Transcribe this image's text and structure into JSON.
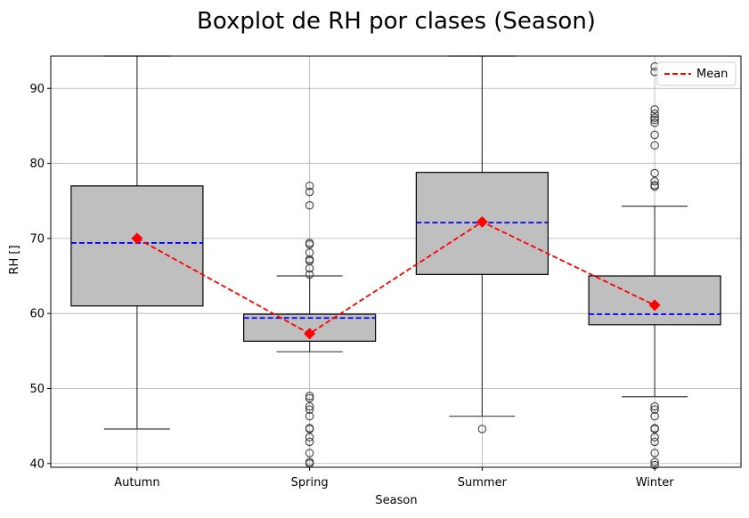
{
  "chart_data": {
    "type": "box",
    "title": "Boxplot de RH por clases (Season)",
    "xlabel": "Season",
    "ylabel": "RH []",
    "ylim": [
      39.5,
      94.3
    ],
    "yticks": [
      40,
      50,
      60,
      70,
      80,
      90
    ],
    "grid": true,
    "legend": {
      "position": "top-right",
      "entries": [
        {
          "label": "Mean",
          "color": "#ff0000",
          "style": "dashed"
        }
      ]
    },
    "colors": {
      "box_fill": "#bfbfbf",
      "box_edge": "#000000",
      "median": "#0000ff",
      "whisker": "#3f3f3f",
      "mean": "#ff0000",
      "grid": "#b0b0b0"
    },
    "categories": [
      "Autumn",
      "Spring",
      "Summer",
      "Winter"
    ],
    "boxes": [
      {
        "category": "Autumn",
        "whisker_low": 44.6,
        "q1": 61.0,
        "median": 69.4,
        "q3": 77.0,
        "whisker_high": 94.3,
        "mean": 70.0,
        "outliers": []
      },
      {
        "category": "Spring",
        "whisker_low": 54.9,
        "q1": 56.3,
        "median": 59.4,
        "q3": 59.9,
        "whisker_high": 65.0,
        "mean": 57.3,
        "outliers": [
          40.0,
          40.2,
          41.4,
          42.9,
          43.5,
          44.6,
          44.7,
          46.3,
          47.2,
          47.6,
          48.7,
          49.0,
          65.2,
          66.0,
          67.0,
          67.2,
          68.1,
          69.2,
          69.4,
          74.4,
          76.2,
          77.0
        ]
      },
      {
        "category": "Summer",
        "whisker_low": 46.3,
        "q1": 65.2,
        "median": 72.1,
        "q3": 78.8,
        "whisker_high": 94.3,
        "mean": 72.2,
        "outliers": [
          44.6
        ]
      },
      {
        "category": "Winter",
        "whisker_low": 48.9,
        "q1": 58.5,
        "median": 59.9,
        "q3": 65.0,
        "whisker_high": 74.3,
        "mean": 61.1,
        "outliers": [
          39.8,
          40.2,
          41.4,
          42.9,
          43.5,
          44.6,
          44.7,
          46.3,
          47.2,
          47.6,
          76.9,
          77.1,
          77.6,
          78.7,
          82.4,
          83.8,
          85.4,
          85.8,
          86.1,
          86.6,
          87.2,
          92.2,
          92.9
        ]
      }
    ]
  }
}
